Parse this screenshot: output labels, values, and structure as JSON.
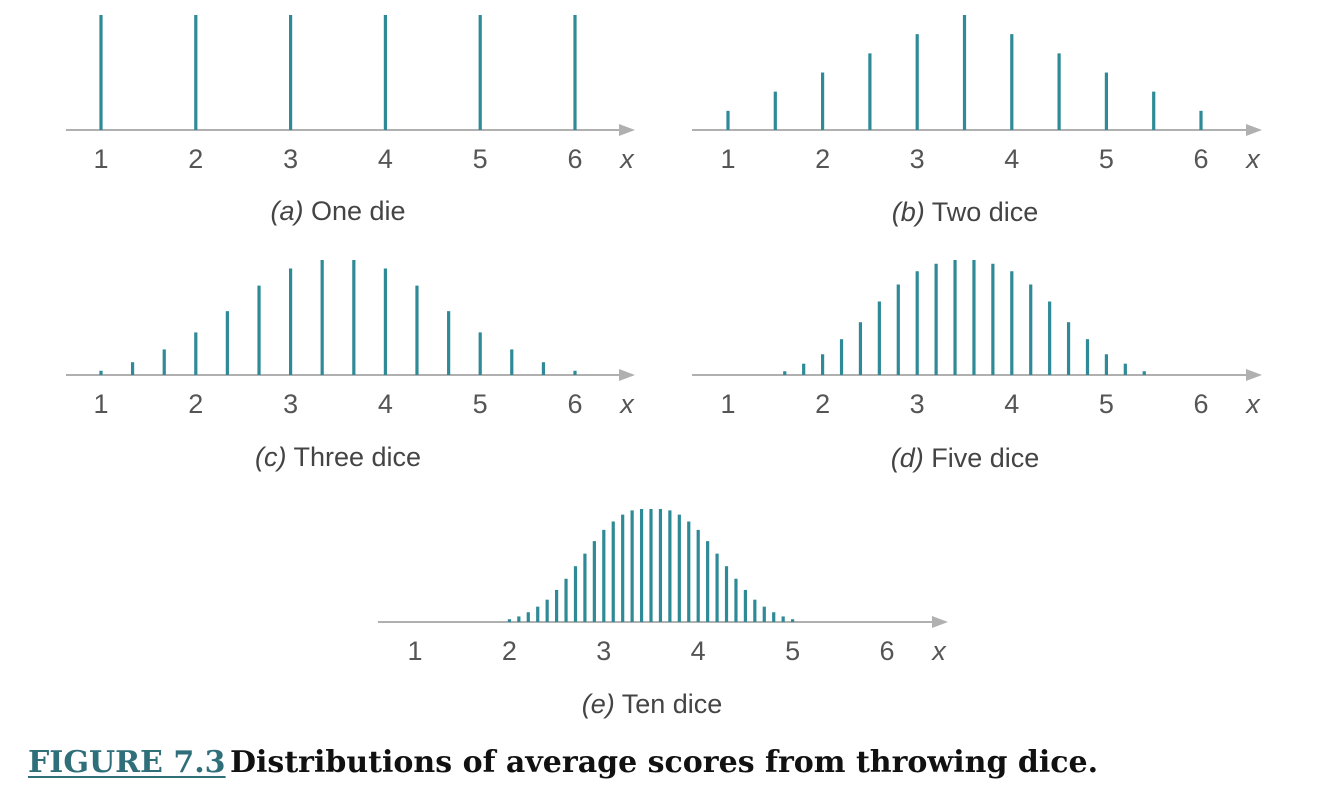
{
  "colors": {
    "bar": "#2e8a96",
    "axis": "#b0b0b0",
    "text": "#555555",
    "link": "#2e6f7a"
  },
  "figure": {
    "label": "FIGURE 7.3",
    "title": "Distributions of average scores from throwing dice."
  },
  "chart_data": [
    {
      "type": "bar",
      "panel_tag": "(a)",
      "panel_title": "One die",
      "xlabel": "x",
      "xticks": [
        "1",
        "2",
        "3",
        "4",
        "5",
        "6"
      ],
      "xlim": [
        1,
        6
      ],
      "x": [
        1,
        2,
        3,
        4,
        5,
        6
      ],
      "values": [
        0.1667,
        0.1667,
        0.1667,
        0.1667,
        0.1667,
        0.1667
      ]
    },
    {
      "type": "bar",
      "panel_tag": "(b)",
      "panel_title": "Two dice",
      "xlabel": "x",
      "xticks": [
        "1",
        "2",
        "3",
        "4",
        "5",
        "6"
      ],
      "xlim": [
        1,
        6
      ],
      "x": [
        1,
        1.5,
        2,
        2.5,
        3,
        3.5,
        4,
        4.5,
        5,
        5.5,
        6
      ],
      "values": [
        0.0278,
        0.0556,
        0.0833,
        0.1111,
        0.1389,
        0.1667,
        0.1389,
        0.1111,
        0.0833,
        0.0556,
        0.0278
      ]
    },
    {
      "type": "bar",
      "panel_tag": "(c)",
      "panel_title": "Three dice",
      "xlabel": "x",
      "xticks": [
        "1",
        "2",
        "3",
        "4",
        "5",
        "6"
      ],
      "xlim": [
        1,
        6
      ],
      "x": [
        1,
        1.333,
        1.667,
        2,
        2.333,
        2.667,
        3,
        3.333,
        3.667,
        4,
        4.333,
        4.667,
        5,
        5.333,
        5.667,
        6
      ],
      "values": [
        0.0046,
        0.0139,
        0.0278,
        0.0463,
        0.0694,
        0.0972,
        0.1157,
        0.125,
        0.125,
        0.1157,
        0.0972,
        0.0694,
        0.0463,
        0.0278,
        0.0139,
        0.0046
      ]
    },
    {
      "type": "bar",
      "panel_tag": "(d)",
      "panel_title": "Five dice",
      "xlabel": "x",
      "xticks": [
        "1",
        "2",
        "3",
        "4",
        "5",
        "6"
      ],
      "xlim": [
        1,
        6
      ],
      "x": [
        1.6,
        1.8,
        2.0,
        2.2,
        2.4,
        2.6,
        2.8,
        3.0,
        3.2,
        3.4,
        3.6,
        3.8,
        4.0,
        4.2,
        4.4,
        4.6,
        4.8,
        5.0,
        5.2,
        5.4
      ],
      "values": [
        0.004,
        0.012,
        0.022,
        0.038,
        0.056,
        0.078,
        0.096,
        0.11,
        0.118,
        0.122,
        0.122,
        0.118,
        0.11,
        0.096,
        0.078,
        0.056,
        0.038,
        0.022,
        0.012,
        0.004
      ]
    },
    {
      "type": "bar",
      "panel_tag": "(e)",
      "panel_title": "Ten dice",
      "xlabel": "x",
      "xticks": [
        "1",
        "2",
        "3",
        "4",
        "5",
        "6"
      ],
      "xlim": [
        1,
        6
      ],
      "x": [
        2.0,
        2.1,
        2.2,
        2.3,
        2.4,
        2.5,
        2.6,
        2.7,
        2.8,
        2.9,
        3.0,
        3.1,
        3.2,
        3.3,
        3.4,
        3.5,
        3.6,
        3.7,
        3.8,
        3.9,
        4.0,
        4.1,
        4.2,
        4.3,
        4.4,
        4.5,
        4.6,
        4.7,
        4.8,
        4.9,
        5.0
      ],
      "values": [
        0.002,
        0.004,
        0.007,
        0.011,
        0.016,
        0.023,
        0.031,
        0.04,
        0.049,
        0.058,
        0.066,
        0.072,
        0.077,
        0.08,
        0.081,
        0.081,
        0.081,
        0.08,
        0.077,
        0.072,
        0.066,
        0.058,
        0.049,
        0.04,
        0.031,
        0.023,
        0.016,
        0.011,
        0.007,
        0.004,
        0.002
      ]
    }
  ]
}
